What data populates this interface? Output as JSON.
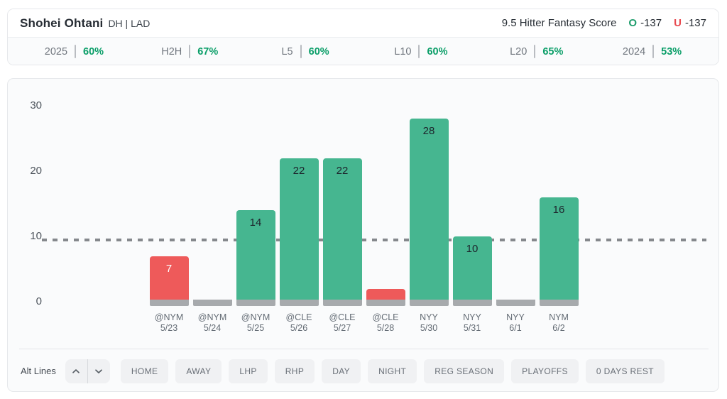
{
  "header": {
    "player_name": "Shohei Ohtani",
    "position_team": "DH | LAD",
    "market_label": "9.5 Hitter Fantasy Score",
    "over_symbol": "O",
    "over_odds": "-137",
    "under_symbol": "U",
    "under_odds": "-137"
  },
  "splits": [
    {
      "label": "2025",
      "value": "60%"
    },
    {
      "label": "H2H",
      "value": "67%"
    },
    {
      "label": "L5",
      "value": "60%"
    },
    {
      "label": "L10",
      "value": "60%"
    },
    {
      "label": "L20",
      "value": "65%"
    },
    {
      "label": "2024",
      "value": "53%"
    }
  ],
  "chart_data": {
    "type": "bar",
    "title": "",
    "xlabel": "",
    "ylabel": "",
    "ylim": [
      0,
      30
    ],
    "yticks": [
      0,
      10,
      20,
      30
    ],
    "grid": false,
    "threshold_line": 9.5,
    "categories": [
      "@NYM 5/23",
      "@NYM 5/24",
      "@NYM 5/25",
      "@CLE 5/26",
      "@CLE 5/27",
      "@CLE 5/28",
      "NYY 5/30",
      "NYY 5/31",
      "NYY 6/1",
      "NYM 6/2"
    ],
    "values": [
      7,
      0,
      14,
      22,
      22,
      2,
      28,
      10,
      0,
      16
    ],
    "bars": [
      {
        "team": "@NYM",
        "date": "5/23",
        "value": 7,
        "label": "7",
        "result": "under"
      },
      {
        "team": "@NYM",
        "date": "5/24",
        "value": 0,
        "label": "",
        "result": "push"
      },
      {
        "team": "@NYM",
        "date": "5/25",
        "value": 14,
        "label": "14",
        "result": "over"
      },
      {
        "team": "@CLE",
        "date": "5/26",
        "value": 22,
        "label": "22",
        "result": "over"
      },
      {
        "team": "@CLE",
        "date": "5/27",
        "value": 22,
        "label": "22",
        "result": "over"
      },
      {
        "team": "@CLE",
        "date": "5/28",
        "value": 2,
        "label": "",
        "result": "under"
      },
      {
        "team": "NYY",
        "date": "5/30",
        "value": 28,
        "label": "28",
        "result": "over"
      },
      {
        "team": "NYY",
        "date": "5/31",
        "value": 10,
        "label": "10",
        "result": "over"
      },
      {
        "team": "NYY",
        "date": "6/1",
        "value": 0,
        "label": "",
        "result": "push"
      },
      {
        "team": "NYM",
        "date": "6/2",
        "value": 16,
        "label": "16",
        "result": "over"
      }
    ]
  },
  "colors": {
    "over_bar": "#46b690",
    "under_bar": "#ee5a5a",
    "push_bar": "#a7aaad",
    "stub_gray": "#a7aaad",
    "value_text_dark": "#1d242c",
    "value_text_light": "#ffffff",
    "over_accent": "#1f9d6d",
    "under_accent": "#e8494f",
    "split_green": "#0a9e68",
    "dashed_line": "#85888c"
  },
  "filters": {
    "alt_lines_label": "Alt Lines",
    "up_icon": "chevron-up",
    "down_icon": "chevron-down",
    "buttons": [
      "HOME",
      "AWAY",
      "LHP",
      "RHP",
      "DAY",
      "NIGHT",
      "REG SEASON",
      "PLAYOFFS",
      "0 DAYS REST"
    ]
  }
}
